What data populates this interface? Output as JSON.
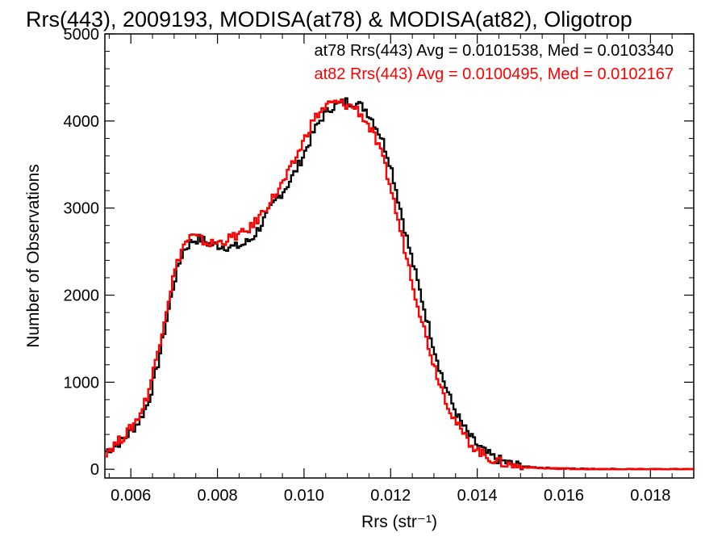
{
  "chart_data": {
    "type": "line",
    "title": "Rrs(443), 2009193, MODISA(at78) & MODISA(at82), Oligotrop",
    "xlabel": "Rrs (str⁻¹)",
    "ylabel": "Number of Observations",
    "xlim": [
      0.0054,
      0.019
    ],
    "ylim": [
      -100,
      5000
    ],
    "x_ticks": [
      0.006,
      0.008,
      0.01,
      0.012,
      0.014,
      0.016,
      0.018
    ],
    "x_tick_labels": [
      "0.006",
      "0.008",
      "0.010",
      "0.012",
      "0.014",
      "0.016",
      "0.018"
    ],
    "y_ticks": [
      0,
      1000,
      2000,
      3000,
      4000,
      5000
    ],
    "y_tick_labels": [
      "0",
      "1000",
      "2000",
      "3000",
      "4000",
      "5000"
    ],
    "grid": false,
    "legend_position": "top-right",
    "series": [
      {
        "name": "at78 Rrs(443) Avg = 0.0101538, Med = 0.0103340",
        "color": "#000000",
        "points": [
          [
            0.0054,
            200
          ],
          [
            0.0056,
            260
          ],
          [
            0.0058,
            330
          ],
          [
            0.006,
            430
          ],
          [
            0.0062,
            560
          ],
          [
            0.0064,
            760
          ],
          [
            0.0066,
            1150
          ],
          [
            0.0068,
            1650
          ],
          [
            0.007,
            2150
          ],
          [
            0.0072,
            2500
          ],
          [
            0.0074,
            2620
          ],
          [
            0.0076,
            2650
          ],
          [
            0.0078,
            2590
          ],
          [
            0.008,
            2570
          ],
          [
            0.0082,
            2560
          ],
          [
            0.0084,
            2550
          ],
          [
            0.0086,
            2580
          ],
          [
            0.0088,
            2650
          ],
          [
            0.009,
            2800
          ],
          [
            0.0092,
            2970
          ],
          [
            0.0094,
            3120
          ],
          [
            0.0096,
            3250
          ],
          [
            0.0098,
            3420
          ],
          [
            0.01,
            3620
          ],
          [
            0.0102,
            3850
          ],
          [
            0.0104,
            4030
          ],
          [
            0.0106,
            4150
          ],
          [
            0.0108,
            4190
          ],
          [
            0.011,
            4230
          ],
          [
            0.0112,
            4200
          ],
          [
            0.0114,
            4150
          ],
          [
            0.0116,
            4000
          ],
          [
            0.0118,
            3800
          ],
          [
            0.012,
            3500
          ],
          [
            0.0122,
            3050
          ],
          [
            0.0124,
            2600
          ],
          [
            0.0126,
            2200
          ],
          [
            0.0128,
            1800
          ],
          [
            0.013,
            1400
          ],
          [
            0.0132,
            1050
          ],
          [
            0.0134,
            780
          ],
          [
            0.0136,
            560
          ],
          [
            0.0138,
            400
          ],
          [
            0.014,
            280
          ],
          [
            0.0142,
            190
          ],
          [
            0.0144,
            130
          ],
          [
            0.0146,
            90
          ],
          [
            0.0148,
            60
          ],
          [
            0.015,
            40
          ],
          [
            0.0152,
            25
          ],
          [
            0.0156,
            15
          ],
          [
            0.016,
            8
          ],
          [
            0.0165,
            4
          ],
          [
            0.017,
            2
          ],
          [
            0.018,
            0
          ],
          [
            0.019,
            0
          ]
        ]
      },
      {
        "name": "at82 Rrs(443) Avg = 0.0100495, Med = 0.0102167",
        "color": "#ff0000",
        "points": [
          [
            0.0054,
            190
          ],
          [
            0.0056,
            270
          ],
          [
            0.0058,
            360
          ],
          [
            0.006,
            470
          ],
          [
            0.0062,
            620
          ],
          [
            0.0064,
            870
          ],
          [
            0.0066,
            1300
          ],
          [
            0.0068,
            1780
          ],
          [
            0.007,
            2250
          ],
          [
            0.0072,
            2560
          ],
          [
            0.0074,
            2680
          ],
          [
            0.0076,
            2640
          ],
          [
            0.0078,
            2590
          ],
          [
            0.008,
            2600
          ],
          [
            0.0082,
            2630
          ],
          [
            0.0084,
            2680
          ],
          [
            0.0086,
            2710
          ],
          [
            0.0088,
            2790
          ],
          [
            0.009,
            2920
          ],
          [
            0.0092,
            3060
          ],
          [
            0.0094,
            3200
          ],
          [
            0.0096,
            3360
          ],
          [
            0.0098,
            3560
          ],
          [
            0.01,
            3780
          ],
          [
            0.0102,
            4000
          ],
          [
            0.0104,
            4120
          ],
          [
            0.0106,
            4200
          ],
          [
            0.0108,
            4210
          ],
          [
            0.011,
            4180
          ],
          [
            0.0112,
            4150
          ],
          [
            0.0114,
            4020
          ],
          [
            0.0116,
            3850
          ],
          [
            0.0118,
            3600
          ],
          [
            0.012,
            3240
          ],
          [
            0.0122,
            2800
          ],
          [
            0.0124,
            2380
          ],
          [
            0.0126,
            1950
          ],
          [
            0.0128,
            1560
          ],
          [
            0.013,
            1200
          ],
          [
            0.0132,
            900
          ],
          [
            0.0134,
            650
          ],
          [
            0.0136,
            460
          ],
          [
            0.0138,
            320
          ],
          [
            0.014,
            220
          ],
          [
            0.0142,
            150
          ],
          [
            0.0144,
            100
          ],
          [
            0.0146,
            70
          ],
          [
            0.0148,
            45
          ],
          [
            0.015,
            30
          ],
          [
            0.0152,
            20
          ],
          [
            0.0156,
            12
          ],
          [
            0.016,
            6
          ],
          [
            0.0165,
            3
          ],
          [
            0.017,
            1
          ],
          [
            0.018,
            0
          ],
          [
            0.019,
            0
          ]
        ]
      }
    ]
  }
}
